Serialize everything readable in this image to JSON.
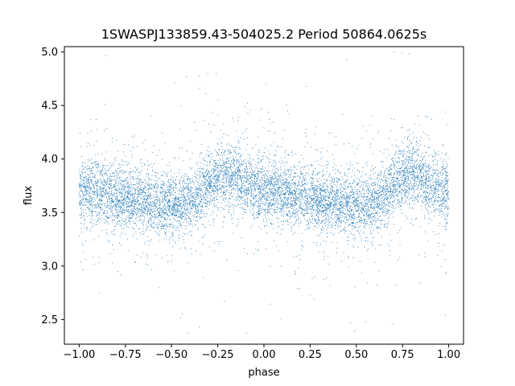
{
  "chart_data": {
    "type": "scatter",
    "title": "1SWASPJ133859.43-504025.2 Period 50864.0625s",
    "xlabel": "phase",
    "ylabel": "flux",
    "xlim": [
      -1.08,
      1.08
    ],
    "ylim": [
      2.27,
      5.05
    ],
    "x_ticks": [
      -1.0,
      -0.75,
      -0.5,
      -0.25,
      0.0,
      0.25,
      0.5,
      0.75,
      1.0
    ],
    "x_tick_labels": [
      "−1.00",
      "−0.75",
      "−0.50",
      "−0.25",
      "0.00",
      "0.25",
      "0.50",
      "0.75",
      "1.00"
    ],
    "y_ticks": [
      2.5,
      3.0,
      3.5,
      4.0,
      4.5,
      5.0
    ],
    "y_tick_labels": [
      "2.5",
      "3.0",
      "3.5",
      "4.0",
      "4.5",
      "5.0"
    ],
    "grid": false,
    "legend": "none",
    "point_color": "#1f77b4",
    "x_range": [
      -1.0,
      1.0
    ],
    "phase_profile": [
      [
        0.0,
        3.7
      ],
      [
        0.05,
        3.71
      ],
      [
        0.1,
        3.68
      ],
      [
        0.15,
        3.66
      ],
      [
        0.2,
        3.64
      ],
      [
        0.25,
        3.63
      ],
      [
        0.3,
        3.63
      ],
      [
        0.35,
        3.6
      ],
      [
        0.4,
        3.58
      ],
      [
        0.45,
        3.57
      ],
      [
        0.5,
        3.58
      ],
      [
        0.55,
        3.57
      ],
      [
        0.6,
        3.6
      ],
      [
        0.65,
        3.66
      ],
      [
        0.7,
        3.76
      ],
      [
        0.75,
        3.84
      ],
      [
        0.8,
        3.87
      ],
      [
        0.85,
        3.82
      ],
      [
        0.9,
        3.76
      ],
      [
        0.95,
        3.72
      ],
      [
        1.0,
        3.7
      ]
    ]
  }
}
